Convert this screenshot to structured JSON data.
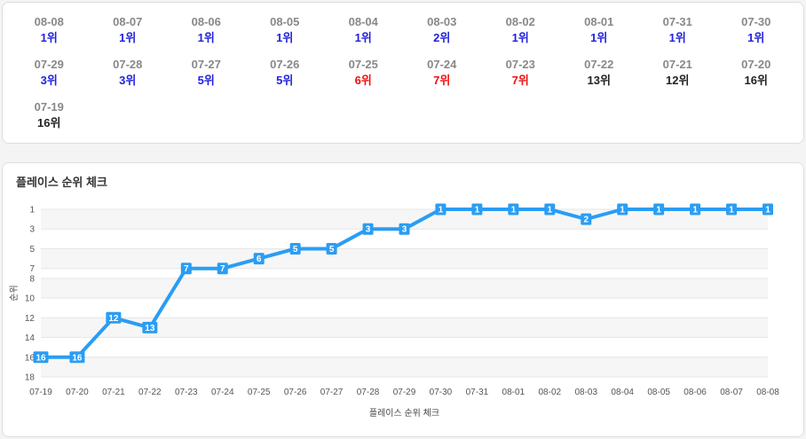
{
  "daily_ranks": [
    {
      "date": "08-08",
      "rank": "1위",
      "color": "blue"
    },
    {
      "date": "08-07",
      "rank": "1위",
      "color": "blue"
    },
    {
      "date": "08-06",
      "rank": "1위",
      "color": "blue"
    },
    {
      "date": "08-05",
      "rank": "1위",
      "color": "blue"
    },
    {
      "date": "08-04",
      "rank": "1위",
      "color": "blue"
    },
    {
      "date": "08-03",
      "rank": "2위",
      "color": "blue"
    },
    {
      "date": "08-02",
      "rank": "1위",
      "color": "blue"
    },
    {
      "date": "08-01",
      "rank": "1위",
      "color": "blue"
    },
    {
      "date": "07-31",
      "rank": "1위",
      "color": "blue"
    },
    {
      "date": "07-30",
      "rank": "1위",
      "color": "blue"
    },
    {
      "date": "07-29",
      "rank": "3위",
      "color": "blue"
    },
    {
      "date": "07-28",
      "rank": "3위",
      "color": "blue"
    },
    {
      "date": "07-27",
      "rank": "5위",
      "color": "blue"
    },
    {
      "date": "07-26",
      "rank": "5위",
      "color": "blue"
    },
    {
      "date": "07-25",
      "rank": "6위",
      "color": "red"
    },
    {
      "date": "07-24",
      "rank": "7위",
      "color": "red"
    },
    {
      "date": "07-23",
      "rank": "7위",
      "color": "red"
    },
    {
      "date": "07-22",
      "rank": "13위",
      "color": "black"
    },
    {
      "date": "07-21",
      "rank": "12위",
      "color": "black"
    },
    {
      "date": "07-20",
      "rank": "16위",
      "color": "black"
    },
    {
      "date": "07-19",
      "rank": "16위",
      "color": "black"
    }
  ],
  "colors": {
    "line": "#2a9df4",
    "blue": "#2222dd",
    "red": "#ee1111",
    "black": "#222222",
    "band": "#f6f6f6"
  },
  "chart_data": {
    "type": "line",
    "title": "플레이스 순위 체크",
    "xlabel": "플레이스 순위 체크",
    "ylabel": "순위",
    "y_reversed": true,
    "ylim": [
      1,
      18
    ],
    "y_ticks": [
      1,
      3,
      5,
      7,
      8,
      10,
      12,
      14,
      16,
      18
    ],
    "grid": true,
    "x": [
      "07-19",
      "07-20",
      "07-21",
      "07-22",
      "07-23",
      "07-24",
      "07-25",
      "07-26",
      "07-27",
      "07-28",
      "07-29",
      "07-30",
      "07-31",
      "08-01",
      "08-02",
      "08-03",
      "08-04",
      "08-05",
      "08-06",
      "08-07",
      "08-08"
    ],
    "series": [
      {
        "values": [
          16,
          16,
          12,
          13,
          7,
          7,
          6,
          5,
          5,
          3,
          3,
          1,
          1,
          1,
          1,
          2,
          1,
          1,
          1,
          1,
          1
        ]
      }
    ]
  }
}
